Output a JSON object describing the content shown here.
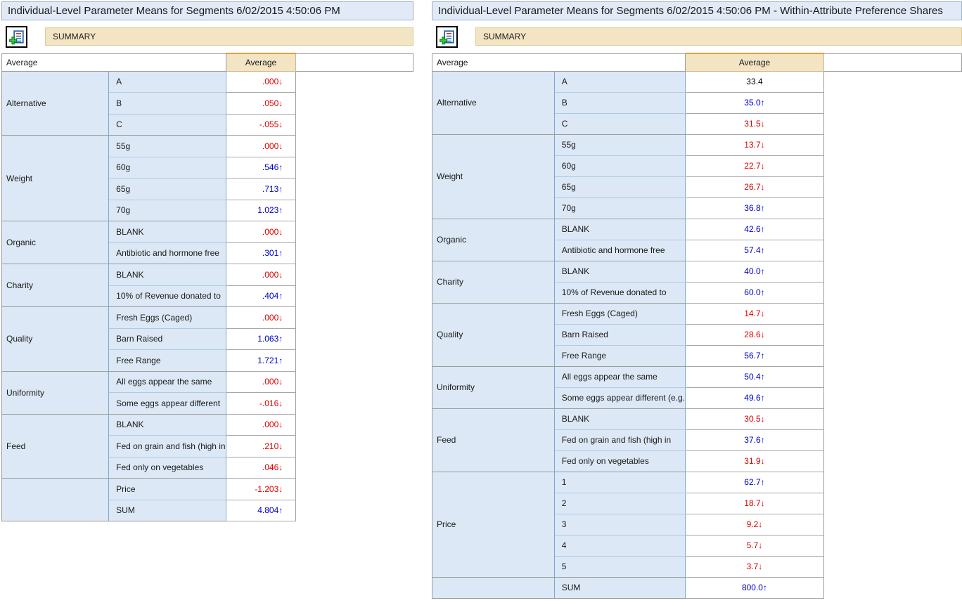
{
  "colors": {
    "up_value": "#0000cd",
    "down_value": "#e00000",
    "neutral_value": "#000000",
    "band_background": "#f3e5c3",
    "header_accent_top": "#d9a33a",
    "cell_blue": "#dce8f5",
    "titlebar_background": "#e1eaf6"
  },
  "icons": {
    "add_button": "add-report-icon",
    "up_arrow": "↑",
    "down_arrow": "↓"
  },
  "panels": [
    {
      "title": "Individual-Level Parameter Means for Segments 6/02/2015 4:50:06 PM",
      "toolbar": {
        "summary_label": "SUMMARY"
      },
      "table": {
        "header": {
          "left": "Average",
          "value": "Average"
        },
        "value_align": "right",
        "groups": [
          {
            "label": "Alternative",
            "rows": [
              {
                "level": "A",
                "value": ".000",
                "dir": "down"
              },
              {
                "level": "B",
                "value": ".050",
                "dir": "down"
              },
              {
                "level": "C",
                "value": "-.055",
                "dir": "down"
              }
            ]
          },
          {
            "label": "Weight",
            "rows": [
              {
                "level": "55g",
                "value": ".000",
                "dir": "down"
              },
              {
                "level": "60g",
                "value": ".546",
                "dir": "up"
              },
              {
                "level": "65g",
                "value": ".713",
                "dir": "up"
              },
              {
                "level": "70g",
                "value": "1.023",
                "dir": "up"
              }
            ]
          },
          {
            "label": "Organic",
            "rows": [
              {
                "level": "BLANK",
                "value": ".000",
                "dir": "down"
              },
              {
                "level": "Antibiotic and hormone free",
                "value": ".301",
                "dir": "up"
              }
            ]
          },
          {
            "label": "Charity",
            "rows": [
              {
                "level": "BLANK",
                "value": ".000",
                "dir": "down"
              },
              {
                "level": "10% of Revenue donated to",
                "value": ".404",
                "dir": "up"
              }
            ]
          },
          {
            "label": "Quality",
            "rows": [
              {
                "level": "Fresh Eggs (Caged)",
                "value": ".000",
                "dir": "down"
              },
              {
                "level": "Barn Raised",
                "value": "1.063",
                "dir": "up"
              },
              {
                "level": "Free Range",
                "value": "1.721",
                "dir": "up"
              }
            ]
          },
          {
            "label": "Uniformity",
            "rows": [
              {
                "level": "All eggs appear the same",
                "value": ".000",
                "dir": "down"
              },
              {
                "level": "Some eggs appear different",
                "value": "-.016",
                "dir": "down"
              }
            ]
          },
          {
            "label": "Feed",
            "rows": [
              {
                "level": "BLANK",
                "value": ".000",
                "dir": "down"
              },
              {
                "level": "Fed on grain and fish (high in",
                "value": ".210",
                "dir": "down"
              },
              {
                "level": "Fed only on vegetables",
                "value": ".046",
                "dir": "down"
              }
            ]
          },
          {
            "label": "",
            "rows": [
              {
                "level": "Price",
                "value": "-1.203",
                "dir": "down"
              },
              {
                "level": "SUM",
                "value": "4.804",
                "dir": "up"
              }
            ]
          }
        ]
      }
    },
    {
      "title": "Individual-Level Parameter Means for Segments 6/02/2015 4:50:06 PM - Within-Attribute Preference Shares",
      "toolbar": {
        "summary_label": "SUMMARY"
      },
      "table": {
        "header": {
          "left": "Average",
          "value": "Average"
        },
        "value_align": "center",
        "groups": [
          {
            "label": "Alternative",
            "rows": [
              {
                "level": "A",
                "value": "33.4",
                "dir": "none"
              },
              {
                "level": "B",
                "value": "35.0",
                "dir": "up"
              },
              {
                "level": "C",
                "value": "31.5",
                "dir": "down"
              }
            ]
          },
          {
            "label": "Weight",
            "rows": [
              {
                "level": "55g",
                "value": "13.7",
                "dir": "down"
              },
              {
                "level": "60g",
                "value": "22.7",
                "dir": "down"
              },
              {
                "level": "65g",
                "value": "26.7",
                "dir": "down"
              },
              {
                "level": "70g",
                "value": "36.8",
                "dir": "up"
              }
            ]
          },
          {
            "label": "Organic",
            "rows": [
              {
                "level": "BLANK",
                "value": "42.6",
                "dir": "up"
              },
              {
                "level": "Antibiotic and hormone free",
                "value": "57.4",
                "dir": "up"
              }
            ]
          },
          {
            "label": "Charity",
            "rows": [
              {
                "level": "BLANK",
                "value": "40.0",
                "dir": "up"
              },
              {
                "level": "10% of Revenue donated to",
                "value": "60.0",
                "dir": "up"
              }
            ]
          },
          {
            "label": "Quality",
            "rows": [
              {
                "level": "Fresh Eggs (Caged)",
                "value": "14.7",
                "dir": "down"
              },
              {
                "level": "Barn Raised",
                "value": "28.6",
                "dir": "down"
              },
              {
                "level": "Free Range",
                "value": "56.7",
                "dir": "up"
              }
            ]
          },
          {
            "label": "Uniformity",
            "rows": [
              {
                "level": "All eggs appear the same",
                "value": "50.4",
                "dir": "up"
              },
              {
                "level": "Some eggs appear different (e.g.",
                "value": "49.6",
                "dir": "up"
              }
            ]
          },
          {
            "label": "Feed",
            "rows": [
              {
                "level": "BLANK",
                "value": "30.5",
                "dir": "down"
              },
              {
                "level": "Fed on grain and fish (high in",
                "value": "37.6",
                "dir": "up"
              },
              {
                "level": "Fed only on vegetables",
                "value": "31.9",
                "dir": "down"
              }
            ]
          },
          {
            "label": "Price",
            "rows": [
              {
                "level": "1",
                "value": "62.7",
                "dir": "up"
              },
              {
                "level": "2",
                "value": "18.7",
                "dir": "down"
              },
              {
                "level": "3",
                "value": "9.2",
                "dir": "down"
              },
              {
                "level": "4",
                "value": "5.7",
                "dir": "down"
              },
              {
                "level": "5",
                "value": "3.7",
                "dir": "down"
              }
            ]
          },
          {
            "label": "",
            "rows": [
              {
                "level": "SUM",
                "value": "800.0",
                "dir": "up"
              }
            ]
          }
        ]
      }
    }
  ]
}
